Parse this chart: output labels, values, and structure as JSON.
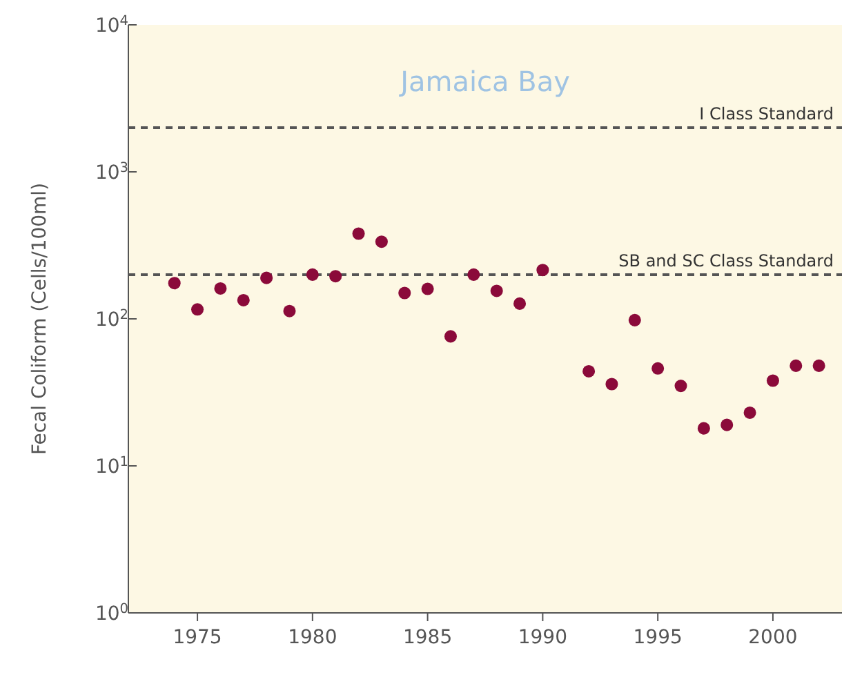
{
  "chart_data": {
    "type": "scatter",
    "title": "Jamaica Bay",
    "ylabel": "Fecal Coliform (Cells/100ml)",
    "x": [
      1974,
      1975,
      1976,
      1977,
      1978,
      1979,
      1980,
      1981,
      1982,
      1983,
      1984,
      1985,
      1986,
      1987,
      1988,
      1989,
      1990,
      1992,
      1993,
      1994,
      1995,
      1996,
      1997,
      1998,
      1999,
      2000,
      2001,
      2002
    ],
    "series": [
      {
        "color": "#8b0a3a",
        "values": [
          175,
          116,
          161,
          134,
          190,
          113,
          200,
          195,
          380,
          335,
          150,
          160,
          76,
          200,
          155,
          127,
          215,
          44,
          36,
          98,
          46,
          35,
          18,
          19,
          23,
          38,
          48,
          48
        ]
      }
    ],
    "log": "y",
    "marker": "circle",
    "legend": false,
    "grid": false,
    "xlim": [
      1972,
      2003
    ],
    "xticks": [
      1975,
      1980,
      1985,
      1990,
      1995,
      2000
    ],
    "ylim": [
      1,
      10000
    ],
    "yticks": [
      {
        "value": 1,
        "label": "10$^{0}$"
      },
      {
        "value": 10,
        "label": "10$^{1}$"
      },
      {
        "value": 100,
        "label": "10$^{2}$"
      },
      {
        "value": 1000,
        "label": "10$^{3}$"
      },
      {
        "value": 10000,
        "label": "10$^{4}$"
      }
    ],
    "ref_lines": [
      {
        "axis": "y",
        "value": 2000,
        "label": "I Class Standard",
        "color": "#555555",
        "line_style": "dashed"
      },
      {
        "axis": "y",
        "value": 200,
        "label": "SB and SC Class Standard",
        "color": "#555555",
        "line_style": "dashed"
      }
    ]
  }
}
